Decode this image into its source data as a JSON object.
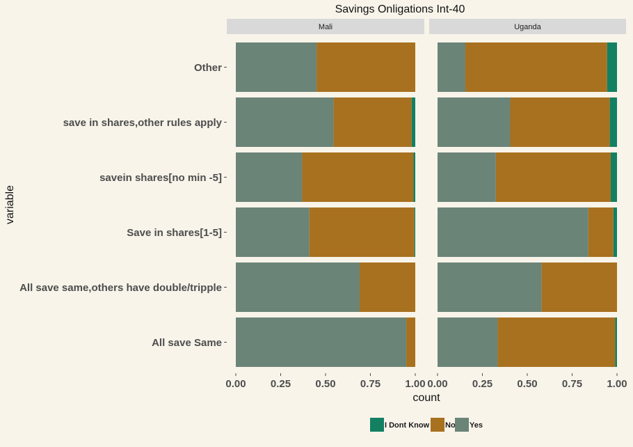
{
  "chart_data": {
    "type": "bar",
    "orientation": "horizontal",
    "stacked": true,
    "position": "fill",
    "title": "Savings Onligations  Int-40",
    "xlabel": "count",
    "ylabel": "variable",
    "xlim": [
      0,
      1
    ],
    "x_ticks": [
      "0.00",
      "0.25",
      "0.50",
      "0.75",
      "1.00"
    ],
    "facets": [
      "Mali",
      "Uganda"
    ],
    "categories": [
      "Other",
      "save in shares,other rules apply",
      "savein shares[no min -5]",
      "Save in shares[1-5]",
      "All save same,others have double/tripple",
      "All save Same"
    ],
    "series": [
      {
        "name": "Yes",
        "color": "#6b8478",
        "values": {
          "Mali": [
            0.45,
            0.545,
            0.37,
            0.41,
            0.69,
            0.95
          ],
          "Uganda": [
            0.155,
            0.405,
            0.325,
            0.84,
            0.58,
            0.335
          ]
        }
      },
      {
        "name": "No",
        "color": "#a8711f",
        "values": {
          "Mali": [
            0.55,
            0.435,
            0.62,
            0.585,
            0.31,
            0.05
          ],
          "Uganda": [
            0.79,
            0.555,
            0.64,
            0.14,
            0.42,
            0.655
          ]
        }
      },
      {
        "name": "I Dont Know",
        "color": "#138062",
        "values": {
          "Mali": [
            0.0,
            0.02,
            0.01,
            0.005,
            0.0,
            0.0
          ],
          "Uganda": [
            0.055,
            0.04,
            0.035,
            0.02,
            0.0,
            0.01
          ]
        }
      }
    ],
    "legend": {
      "position": "bottom",
      "order": [
        "I Dont Know",
        "No",
        "Yes"
      ]
    },
    "grid": false
  }
}
